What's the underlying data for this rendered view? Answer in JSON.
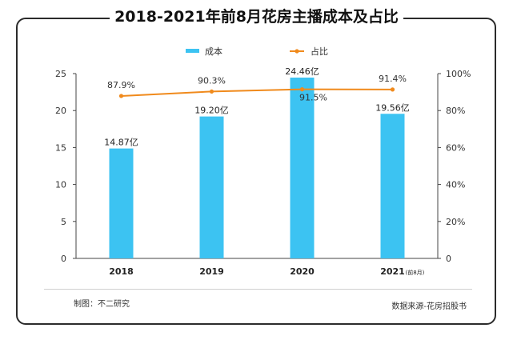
{
  "title": "2018-2021年前8月花房主播成本及占比",
  "footer": {
    "left": "制图：不二研究",
    "right": "数据来源-花房招股书"
  },
  "colors": {
    "bar": "#3cc3f2",
    "line": "#f08a1c",
    "frame": "#2b2b2b"
  },
  "chart_data": {
    "type": "bar",
    "categories": [
      "2018",
      "2019",
      "2020",
      "2021"
    ],
    "category_suffix": [
      "",
      "",
      "",
      "(前8月)"
    ],
    "series": [
      {
        "name": "成本",
        "type": "bar",
        "axis": "left",
        "values": [
          14.87,
          19.2,
          24.46,
          19.56
        ],
        "labels": [
          "14.87亿",
          "19.20亿",
          "24.46亿",
          "19.56亿"
        ]
      },
      {
        "name": "占比",
        "type": "line",
        "axis": "right",
        "values": [
          87.9,
          90.3,
          91.5,
          91.4
        ],
        "labels": [
          "87.9%",
          "90.3%",
          "91.5%",
          "91.4%"
        ]
      }
    ],
    "yleft": {
      "min": 0,
      "max": 25,
      "ticks": [
        "0",
        "5",
        "10",
        "15",
        "20",
        "25"
      ]
    },
    "yright": {
      "min": 0,
      "max": 100,
      "ticks": [
        "0",
        "20%",
        "40%",
        "60%",
        "80%",
        "100%"
      ]
    },
    "legend_position": "top-center",
    "grid": false
  }
}
